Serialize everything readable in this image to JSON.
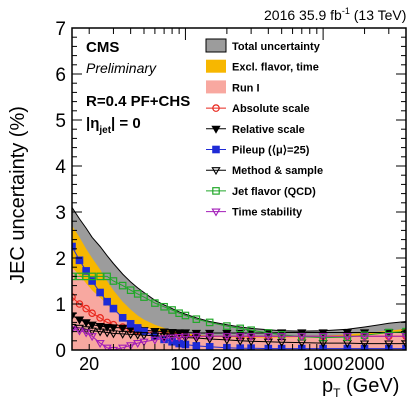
{
  "chart_data": {
    "type": "line",
    "header_right": "2016 35.9 fb",
    "header_sup": "-1",
    "header_tail": " (13 TeV)",
    "cms": "CMS",
    "preliminary": "Preliminary",
    "algo": "R=0.4 PF+CHS",
    "eta_pre": "|η",
    "eta_sub": "jet",
    "eta_post": "| = 0",
    "ylabel": "JEC uncertainty (%)",
    "xlabel_p": "p",
    "xlabel_sub": "T",
    "xlabel_unit": " (GeV)",
    "xlim": [
      15,
      4000
    ],
    "ylim": [
      0,
      7
    ],
    "x_scale": "log",
    "yticks": [
      "0",
      "1",
      "2",
      "3",
      "4",
      "5",
      "6",
      "7"
    ],
    "xticks": [
      {
        "v": 20,
        "label": "20"
      },
      {
        "v": 100,
        "label": "100"
      },
      {
        "v": 200,
        "label": "200"
      },
      {
        "v": 1000,
        "label": "1000"
      },
      {
        "v": 2000,
        "label": "2000"
      }
    ],
    "x": [
      15,
      17,
      19,
      21,
      24,
      27,
      30,
      35,
      40,
      45,
      50,
      60,
      70,
      80,
      90,
      100,
      120,
      150,
      200,
      250,
      300,
      400,
      500,
      700,
      1000,
      1500,
      2000,
      3000,
      4000
    ],
    "bands": [
      {
        "name": "Total uncertainty",
        "color": "#9c9c9c",
        "values": [
          3.1,
          2.85,
          2.65,
          2.45,
          2.25,
          2.05,
          1.88,
          1.65,
          1.48,
          1.35,
          1.25,
          1.08,
          0.98,
          0.9,
          0.83,
          0.78,
          0.7,
          0.62,
          0.55,
          0.5,
          0.47,
          0.44,
          0.42,
          0.41,
          0.42,
          0.45,
          0.5,
          0.58,
          0.62
        ]
      },
      {
        "name": "Excl. flavor, time",
        "color": "#f7b700",
        "values": [
          2.7,
          2.45,
          2.2,
          2.0,
          1.75,
          1.5,
          1.3,
          1.05,
          0.88,
          0.75,
          0.66,
          0.55,
          0.48,
          0.42,
          0.38,
          0.36,
          0.33,
          0.31,
          0.3,
          0.29,
          0.29,
          0.29,
          0.29,
          0.3,
          0.31,
          0.34,
          0.37,
          0.42,
          0.46
        ]
      },
      {
        "name": "Run I",
        "color": "#f8a8a0",
        "values": [
          1.8,
          1.62,
          1.45,
          1.3,
          1.14,
          0.99,
          0.86,
          0.72,
          0.62,
          0.55,
          0.5,
          0.43,
          0.39,
          0.36,
          0.34,
          0.32,
          0.3,
          0.29,
          0.28,
          0.27,
          0.27,
          0.27,
          0.27,
          0.28,
          0.29,
          0.3,
          0.32,
          0.36,
          0.4
        ]
      }
    ],
    "series": [
      {
        "name": "Absolute scale",
        "color": "#e8251b",
        "marker": "circle-open",
        "values": [
          1.15,
          1.0,
          0.9,
          0.8,
          0.7,
          0.6,
          0.55,
          0.5,
          0.45,
          0.42,
          0.4,
          0.37,
          0.35,
          0.33,
          0.32,
          0.31,
          0.3,
          0.3,
          0.3,
          0.3,
          0.3,
          0.3,
          0.3,
          0.3,
          0.3,
          0.3,
          0.3,
          0.3,
          0.3
        ]
      },
      {
        "name": "Relative scale",
        "color": "#000000",
        "marker": "triangle-down",
        "values": [
          0.75,
          0.66,
          0.6,
          0.55,
          0.52,
          0.5,
          0.49,
          0.48,
          0.46,
          0.44,
          0.43,
          0.41,
          0.4,
          0.39,
          0.38,
          0.38,
          0.37,
          0.37,
          0.37,
          0.37,
          0.37,
          0.37,
          0.38,
          0.38,
          0.38,
          0.38,
          0.38,
          0.38,
          0.38
        ]
      },
      {
        "name": "Pileup (⟨μ⟩=25)",
        "color": "#1f2bd6",
        "marker": "square",
        "values": [
          2.25,
          1.95,
          1.72,
          1.5,
          1.25,
          1.05,
          0.9,
          0.7,
          0.57,
          0.48,
          0.4,
          0.3,
          0.23,
          0.18,
          0.14,
          0.12,
          0.09,
          0.07,
          0.05,
          0.04,
          0.04,
          0.03,
          0.03,
          0.03,
          0.03,
          0.03,
          0.03,
          0.03,
          0.03
        ]
      },
      {
        "name": "Method & sample",
        "color": "#000000",
        "marker": "triangle-down-open",
        "values": [
          0.5,
          0.48,
          0.45,
          0.42,
          0.4,
          0.38,
          0.36,
          0.35,
          0.34,
          0.33,
          0.32,
          0.31,
          0.3,
          0.29,
          0.28,
          0.27,
          0.26,
          0.24,
          0.22,
          0.2,
          0.19,
          0.18,
          0.17,
          0.16,
          0.15,
          0.15,
          0.14,
          0.14,
          0.14
        ]
      },
      {
        "name": "Jet flavor (QCD)",
        "color": "#22a82a",
        "marker": "square-open",
        "values": [
          1.6,
          1.6,
          1.6,
          1.6,
          1.6,
          1.6,
          1.5,
          1.4,
          1.3,
          1.22,
          1.15,
          1.02,
          0.94,
          0.87,
          0.8,
          0.75,
          0.67,
          0.6,
          0.52,
          0.47,
          0.43,
          0.37,
          0.33,
          0.29,
          0.27,
          0.28,
          0.32,
          0.38,
          0.4
        ]
      },
      {
        "name": "Time stability",
        "color": "#a21cb8",
        "marker": "triangle-down-open",
        "values": [
          0.45,
          0.42,
          0.38,
          0.3,
          0.15,
          0.05,
          0.0,
          0.05,
          0.1,
          0.15,
          0.18,
          0.22,
          0.25,
          0.27,
          0.28,
          0.29,
          0.3,
          0.3,
          0.3,
          0.3,
          0.3,
          0.3,
          0.3,
          0.3,
          0.3,
          0.3,
          0.3,
          0.3,
          0.3
        ]
      }
    ]
  }
}
